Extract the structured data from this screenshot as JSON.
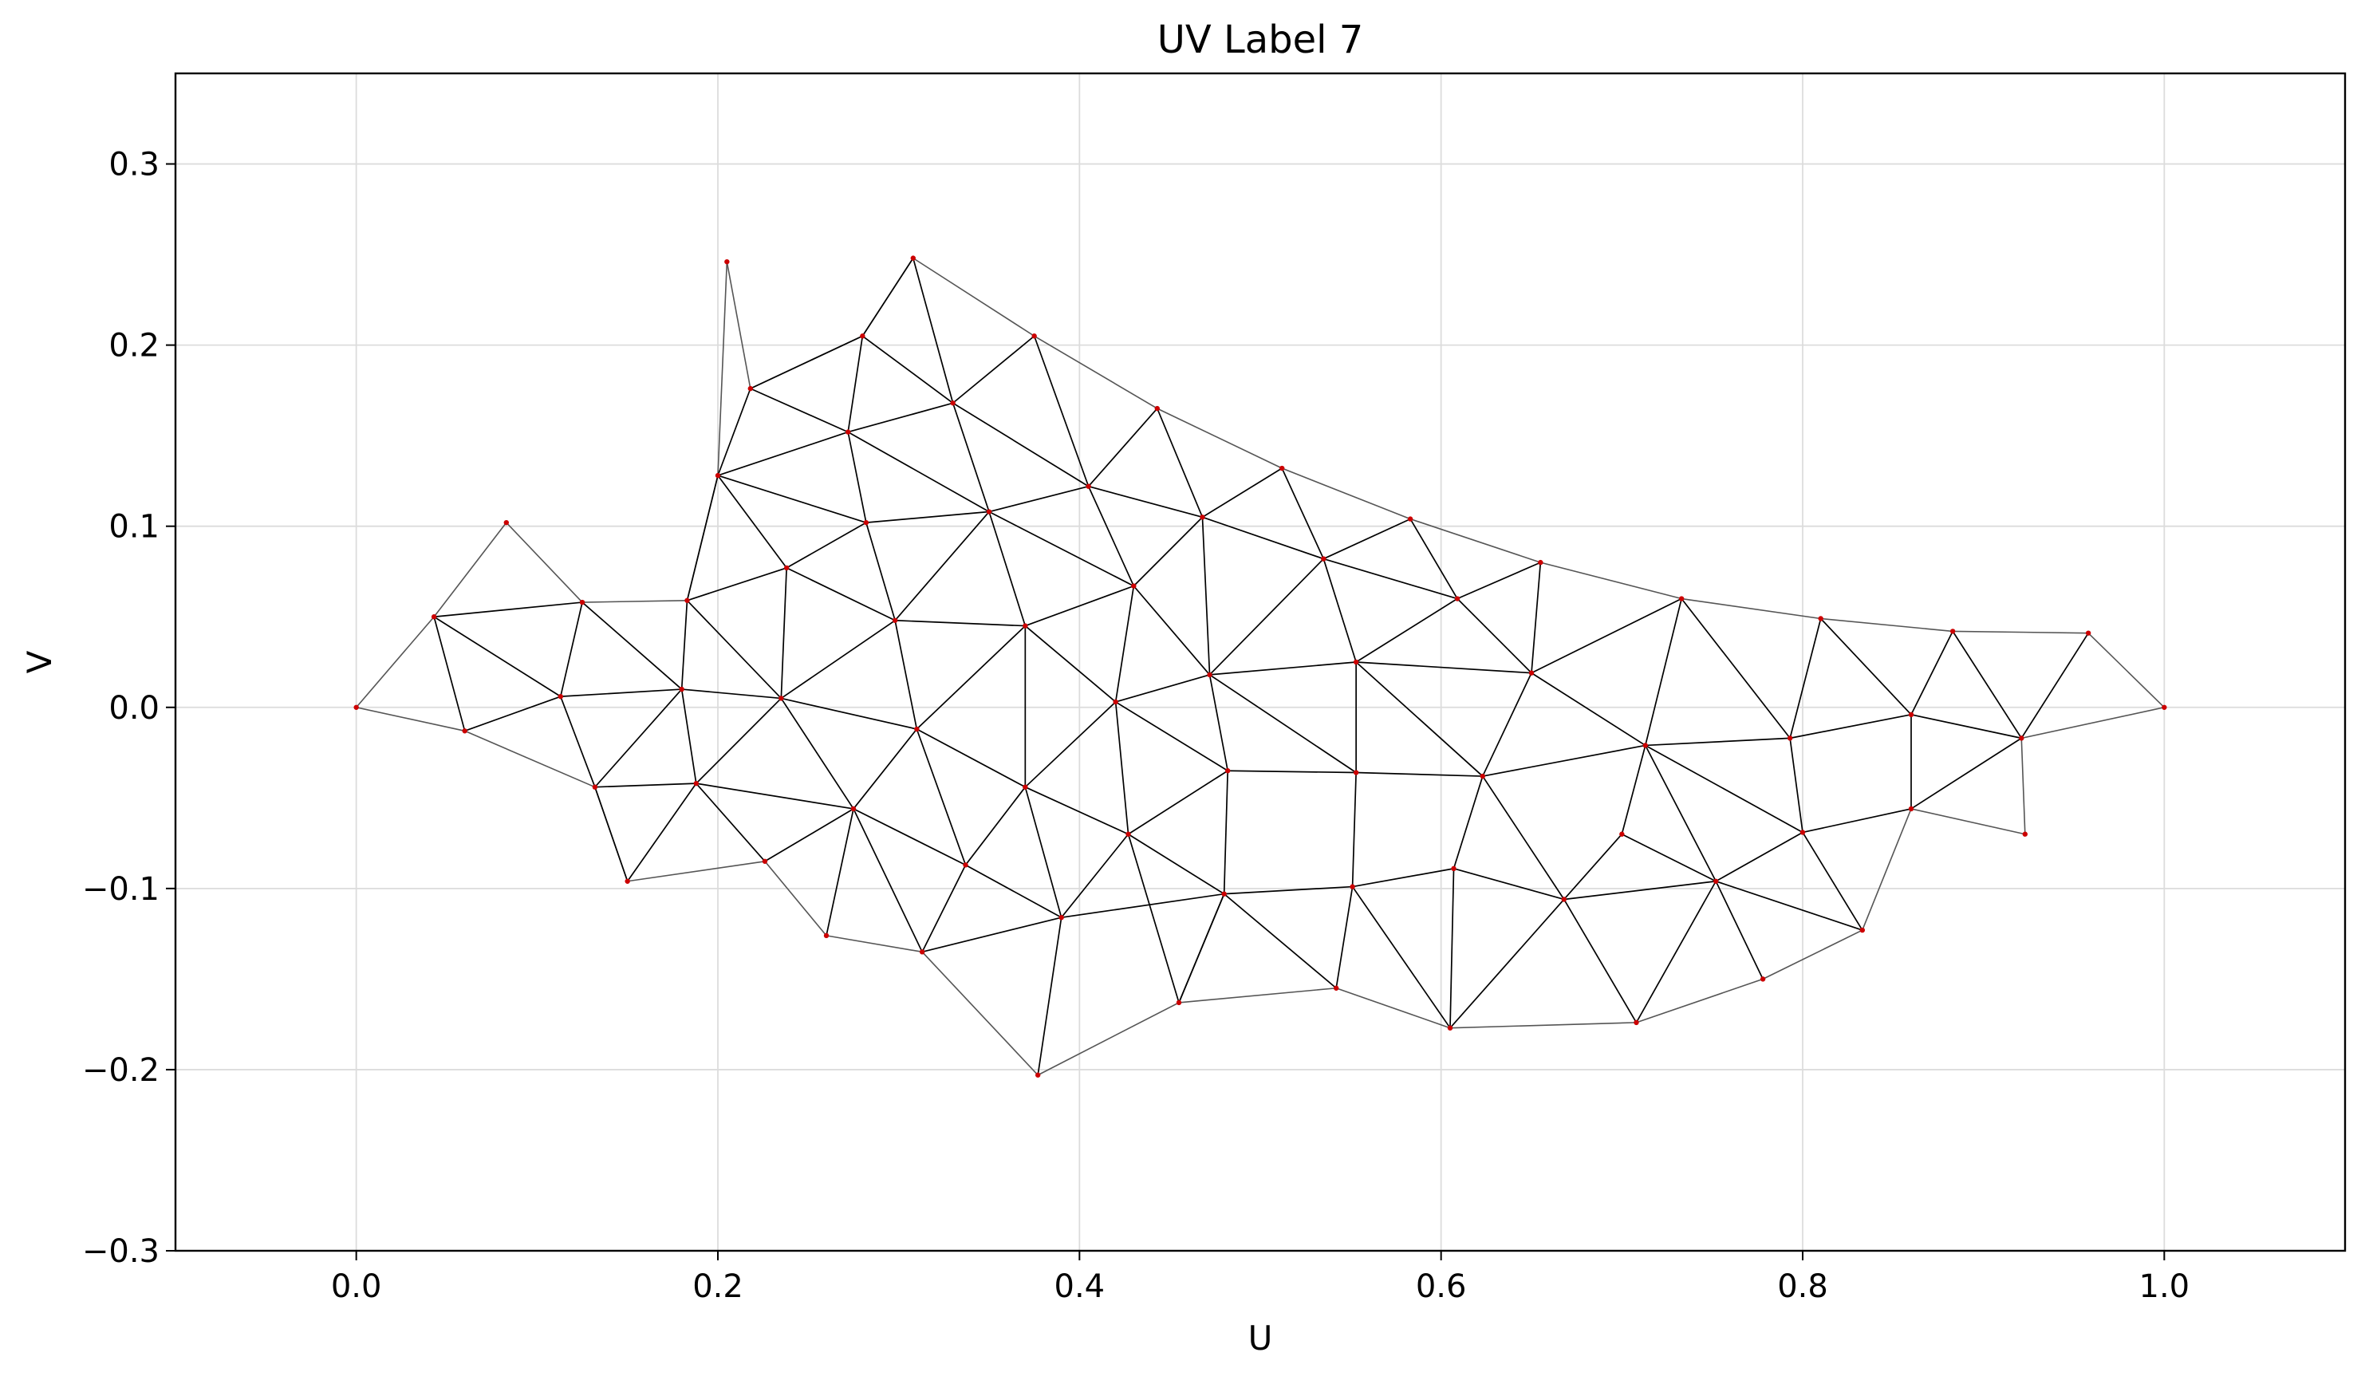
{
  "chart_data": {
    "type": "scatter",
    "title": "UV Label 7",
    "xlabel": "U",
    "ylabel": "V",
    "xlim": [
      -0.1,
      1.1
    ],
    "ylim": [
      -0.3,
      0.35
    ],
    "x_ticks": [
      0.0,
      0.2,
      0.4,
      0.6,
      0.8,
      1.0
    ],
    "x_tick_labels": [
      "0.0",
      "0.2",
      "0.4",
      "0.6",
      "0.8",
      "1.0"
    ],
    "y_ticks": [
      0.3,
      0.2,
      0.1,
      0.0,
      -0.1,
      -0.2,
      -0.3
    ],
    "y_tick_labels": [
      "0.3",
      "0.2",
      "0.1",
      "0.0",
      "−0.1",
      "−0.2",
      "−0.3"
    ],
    "grid": true,
    "point_color": "#cc0000",
    "inner_edge_color": "#000000",
    "boundary_edge_color": "#555555",
    "vertices": [
      [
        0.0,
        0.0
      ],
      [
        0.043,
        0.05
      ],
      [
        0.083,
        0.102
      ],
      [
        0.06,
        -0.013
      ],
      [
        0.125,
        0.058
      ],
      [
        0.113,
        0.006
      ],
      [
        0.132,
        -0.044
      ],
      [
        0.15,
        -0.096
      ],
      [
        0.183,
        0.059
      ],
      [
        0.18,
        0.01
      ],
      [
        0.188,
        -0.042
      ],
      [
        0.226,
        -0.085
      ],
      [
        0.2,
        0.128
      ],
      [
        0.205,
        0.246
      ],
      [
        0.218,
        0.176
      ],
      [
        0.238,
        0.077
      ],
      [
        0.235,
        0.005
      ],
      [
        0.26,
        -0.126
      ],
      [
        0.275,
        -0.056
      ],
      [
        0.28,
        0.205
      ],
      [
        0.272,
        0.152
      ],
      [
        0.282,
        0.102
      ],
      [
        0.298,
        0.048
      ],
      [
        0.31,
        -0.012
      ],
      [
        0.308,
        0.248
      ],
      [
        0.33,
        0.168
      ],
      [
        0.35,
        0.108
      ],
      [
        0.37,
        0.045
      ],
      [
        0.37,
        -0.044
      ],
      [
        0.337,
        -0.087
      ],
      [
        0.313,
        -0.135
      ],
      [
        0.375,
        0.205
      ],
      [
        0.405,
        0.122
      ],
      [
        0.43,
        0.067
      ],
      [
        0.42,
        0.003
      ],
      [
        0.427,
        -0.07
      ],
      [
        0.39,
        -0.116
      ],
      [
        0.377,
        -0.203
      ],
      [
        0.443,
        0.165
      ],
      [
        0.468,
        0.105
      ],
      [
        0.472,
        0.018
      ],
      [
        0.482,
        -0.035
      ],
      [
        0.48,
        -0.103
      ],
      [
        0.455,
        -0.163
      ],
      [
        0.512,
        0.132
      ],
      [
        0.535,
        0.082
      ],
      [
        0.553,
        0.025
      ],
      [
        0.553,
        -0.036
      ],
      [
        0.551,
        -0.099
      ],
      [
        0.542,
        -0.155
      ],
      [
        0.583,
        0.104
      ],
      [
        0.609,
        0.06
      ],
      [
        0.65,
        0.019
      ],
      [
        0.623,
        -0.038
      ],
      [
        0.607,
        -0.089
      ],
      [
        0.605,
        -0.177
      ],
      [
        0.655,
        0.08
      ],
      [
        0.668,
        -0.106
      ],
      [
        0.7,
        -0.07
      ],
      [
        0.713,
        -0.021
      ],
      [
        0.733,
        0.06
      ],
      [
        0.708,
        -0.174
      ],
      [
        0.752,
        -0.096
      ],
      [
        0.778,
        -0.15
      ],
      [
        0.793,
        -0.017
      ],
      [
        0.8,
        -0.069
      ],
      [
        0.81,
        0.049
      ],
      [
        0.833,
        -0.123
      ],
      [
        0.86,
        -0.004
      ],
      [
        0.86,
        -0.056
      ],
      [
        0.883,
        0.042
      ],
      [
        0.921,
        -0.017
      ],
      [
        0.923,
        -0.07
      ],
      [
        0.958,
        0.041
      ],
      [
        1.0,
        0.0
      ]
    ],
    "inner_edges": [
      [
        1,
        3
      ],
      [
        1,
        4
      ],
      [
        1,
        5
      ],
      [
        3,
        5
      ],
      [
        4,
        5
      ],
      [
        4,
        9
      ],
      [
        5,
        9
      ],
      [
        5,
        6
      ],
      [
        6,
        9
      ],
      [
        6,
        7
      ],
      [
        6,
        10
      ],
      [
        8,
        9
      ],
      [
        9,
        10
      ],
      [
        9,
        16
      ],
      [
        8,
        16
      ],
      [
        7,
        10
      ],
      [
        10,
        11
      ],
      [
        10,
        16
      ],
      [
        10,
        18
      ],
      [
        11,
        18
      ],
      [
        12,
        8
      ],
      [
        12,
        15
      ],
      [
        12,
        14
      ],
      [
        12,
        20
      ],
      [
        12,
        21
      ],
      [
        14,
        19
      ],
      [
        14,
        20
      ],
      [
        15,
        8
      ],
      [
        15,
        16
      ],
      [
        15,
        21
      ],
      [
        15,
        22
      ],
      [
        16,
        22
      ],
      [
        16,
        23
      ],
      [
        16,
        18
      ],
      [
        18,
        17
      ],
      [
        18,
        23
      ],
      [
        18,
        30
      ],
      [
        18,
        29
      ],
      [
        19,
        20
      ],
      [
        19,
        25
      ],
      [
        19,
        24
      ],
      [
        20,
        21
      ],
      [
        20,
        25
      ],
      [
        20,
        26
      ],
      [
        21,
        22
      ],
      [
        21,
        26
      ],
      [
        22,
        23
      ],
      [
        22,
        26
      ],
      [
        22,
        27
      ],
      [
        23,
        27
      ],
      [
        23,
        28
      ],
      [
        23,
        29
      ],
      [
        25,
        24
      ],
      [
        25,
        31
      ],
      [
        25,
        26
      ],
      [
        25,
        32
      ],
      [
        26,
        32
      ],
      [
        26,
        27
      ],
      [
        26,
        33
      ],
      [
        27,
        28
      ],
      [
        27,
        33
      ],
      [
        27,
        34
      ],
      [
        28,
        29
      ],
      [
        28,
        34
      ],
      [
        28,
        35
      ],
      [
        28,
        36
      ],
      [
        29,
        30
      ],
      [
        29,
        36
      ],
      [
        30,
        36
      ],
      [
        31,
        32
      ],
      [
        32,
        38
      ],
      [
        32,
        33
      ],
      [
        32,
        39
      ],
      [
        33,
        34
      ],
      [
        33,
        40
      ],
      [
        33,
        39
      ],
      [
        34,
        35
      ],
      [
        34,
        40
      ],
      [
        34,
        41
      ],
      [
        35,
        41
      ],
      [
        35,
        36
      ],
      [
        35,
        42
      ],
      [
        35,
        43
      ],
      [
        36,
        42
      ],
      [
        36,
        37
      ],
      [
        38,
        39
      ],
      [
        39,
        40
      ],
      [
        39,
        44
      ],
      [
        39,
        45
      ],
      [
        40,
        45
      ],
      [
        40,
        46
      ],
      [
        40,
        41
      ],
      [
        40,
        47
      ],
      [
        41,
        42
      ],
      [
        41,
        47
      ],
      [
        42,
        43
      ],
      [
        42,
        48
      ],
      [
        42,
        49
      ],
      [
        43,
        42
      ],
      [
        44,
        45
      ],
      [
        45,
        46
      ],
      [
        45,
        50
      ],
      [
        45,
        51
      ],
      [
        46,
        51
      ],
      [
        46,
        52
      ],
      [
        46,
        47
      ],
      [
        46,
        53
      ],
      [
        47,
        48
      ],
      [
        47,
        53
      ],
      [
        48,
        54
      ],
      [
        48,
        55
      ],
      [
        48,
        49
      ],
      [
        50,
        51
      ],
      [
        51,
        52
      ],
      [
        51,
        56
      ],
      [
        52,
        56
      ],
      [
        52,
        53
      ],
      [
        52,
        59
      ],
      [
        52,
        60
      ],
      [
        53,
        54
      ],
      [
        53,
        57
      ],
      [
        53,
        59
      ],
      [
        54,
        55
      ],
      [
        54,
        57
      ],
      [
        55,
        57
      ],
      [
        57,
        58
      ],
      [
        57,
        62
      ],
      [
        57,
        61
      ],
      [
        58,
        59
      ],
      [
        58,
        62
      ],
      [
        59,
        60
      ],
      [
        59,
        64
      ],
      [
        59,
        62
      ],
      [
        60,
        64
      ],
      [
        62,
        61
      ],
      [
        62,
        63
      ],
      [
        62,
        65
      ],
      [
        62,
        67
      ],
      [
        64,
        66
      ],
      [
        64,
        65
      ],
      [
        64,
        68
      ],
      [
        65,
        67
      ],
      [
        65,
        69
      ],
      [
        66,
        68
      ],
      [
        68,
        70
      ],
      [
        68,
        71
      ],
      [
        68,
        69
      ],
      [
        69,
        71
      ],
      [
        70,
        71
      ],
      [
        71,
        73
      ],
      [
        59,
        65
      ]
    ],
    "boundary_edges": [
      [
        0,
        1
      ],
      [
        1,
        2
      ],
      [
        2,
        4
      ],
      [
        4,
        8
      ],
      [
        8,
        12
      ],
      [
        12,
        13
      ],
      [
        13,
        14
      ],
      [
        14,
        19
      ],
      [
        19,
        24
      ],
      [
        24,
        31
      ],
      [
        31,
        38
      ],
      [
        38,
        44
      ],
      [
        44,
        50
      ],
      [
        50,
        56
      ],
      [
        56,
        60
      ],
      [
        60,
        66
      ],
      [
        66,
        70
      ],
      [
        70,
        73
      ],
      [
        73,
        74
      ],
      [
        74,
        71
      ],
      [
        71,
        72
      ],
      [
        72,
        69
      ],
      [
        69,
        67
      ],
      [
        67,
        63
      ],
      [
        63,
        61
      ],
      [
        61,
        55
      ],
      [
        55,
        49
      ],
      [
        49,
        43
      ],
      [
        43,
        37
      ],
      [
        37,
        30
      ],
      [
        30,
        17
      ],
      [
        17,
        11
      ],
      [
        11,
        7
      ],
      [
        7,
        6
      ],
      [
        6,
        3
      ],
      [
        3,
        0
      ]
    ]
  }
}
